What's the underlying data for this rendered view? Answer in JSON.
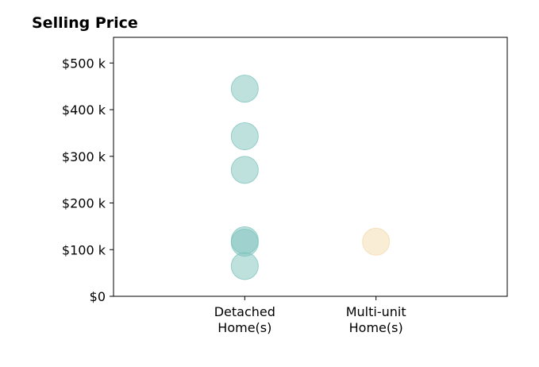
{
  "chart_data": {
    "type": "scatter",
    "title": "Selling Price",
    "xlabel": "",
    "ylabel": "",
    "categories": [
      [
        "Detached",
        "Home(s)"
      ],
      [
        "Multi-unit",
        "Home(s)"
      ]
    ],
    "y_tick_values": [
      0,
      100,
      200,
      300,
      400,
      500
    ],
    "y_tick_labels": [
      "$0",
      "$100 k",
      "$200 k",
      "$300 k",
      "$400 k",
      "$500 k"
    ],
    "ylim": [
      0,
      555
    ],
    "xlim": [
      -1,
      2
    ],
    "grid": false,
    "series": [
      {
        "category_index": 0,
        "color": "#7fc4bd",
        "values": [
          445,
          343,
          271,
          120,
          115,
          65
        ]
      },
      {
        "category_index": 1,
        "color": "#f4dcae",
        "values": [
          117
        ]
      }
    ]
  }
}
